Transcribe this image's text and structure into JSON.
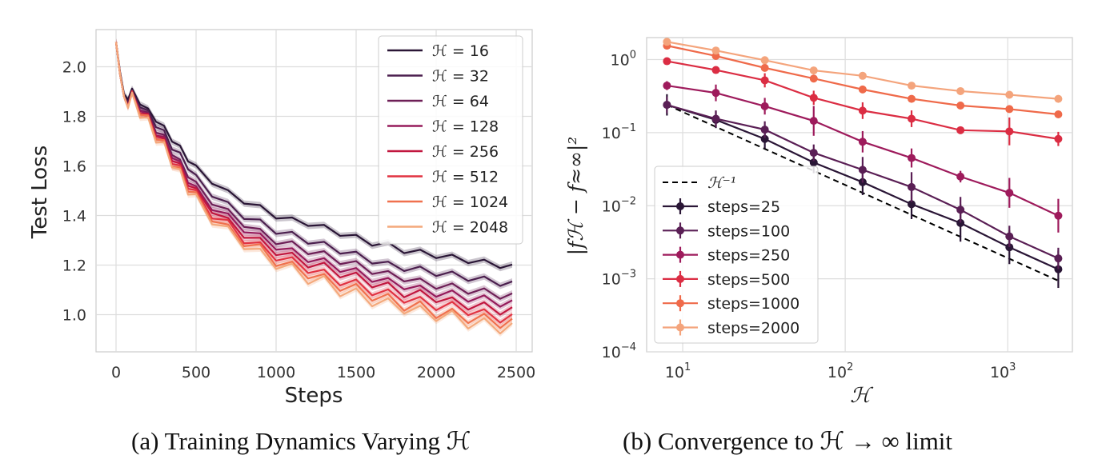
{
  "chart_data": [
    {
      "type": "line",
      "title": "",
      "xlabel": "Steps",
      "ylabel": "Test Loss",
      "xlim": [
        -125,
        2600
      ],
      "ylim": [
        0.85,
        2.15
      ],
      "xticks": [
        0,
        500,
        1000,
        1500,
        2000,
        2500
      ],
      "xtick_labels": [
        "0",
        "500",
        "1000",
        "1500",
        "2000",
        "2500"
      ],
      "yticks": [
        1.0,
        1.2,
        1.4,
        1.6,
        1.8,
        2.0
      ],
      "ytick_labels": [
        "1.0",
        "1.2",
        "1.4",
        "1.6",
        "1.8",
        "2.0"
      ],
      "grid": true,
      "legend_position": "top-right",
      "caption": "(a) Training Dynamics Varying ℋ",
      "x": [
        0,
        25,
        50,
        75,
        100,
        150,
        200,
        250,
        300,
        350,
        400,
        450,
        500,
        600,
        700,
        800,
        900,
        1000,
        1100,
        1200,
        1300,
        1400,
        1500,
        1600,
        1700,
        1800,
        1900,
        2000,
        2100,
        2200,
        2300,
        2400,
        2475
      ],
      "series": [
        {
          "name": "ℋ = 16",
          "color": "#2a1636",
          "values": [
            2.1,
            1.98,
            1.89,
            1.88,
            1.9,
            1.86,
            1.82,
            1.79,
            1.75,
            1.71,
            1.67,
            1.63,
            1.59,
            1.54,
            1.49,
            1.46,
            1.43,
            1.4,
            1.38,
            1.37,
            1.35,
            1.33,
            1.31,
            1.29,
            1.28,
            1.26,
            1.25,
            1.24,
            1.23,
            1.22,
            1.21,
            1.2,
            1.19
          ]
        },
        {
          "name": "ℋ = 32",
          "color": "#4b1f4e",
          "values": [
            2.1,
            1.97,
            1.88,
            1.87,
            1.89,
            1.85,
            1.81,
            1.77,
            1.73,
            1.68,
            1.64,
            1.6,
            1.55,
            1.49,
            1.44,
            1.4,
            1.37,
            1.34,
            1.32,
            1.3,
            1.28,
            1.26,
            1.24,
            1.22,
            1.2,
            1.19,
            1.18,
            1.17,
            1.16,
            1.15,
            1.14,
            1.13,
            1.12
          ]
        },
        {
          "name": "ℋ = 64",
          "color": "#6e1f57",
          "values": [
            2.1,
            1.97,
            1.88,
            1.86,
            1.88,
            1.84,
            1.8,
            1.75,
            1.71,
            1.66,
            1.61,
            1.57,
            1.52,
            1.46,
            1.41,
            1.37,
            1.33,
            1.3,
            1.28,
            1.26,
            1.24,
            1.22,
            1.2,
            1.18,
            1.16,
            1.15,
            1.13,
            1.12,
            1.11,
            1.1,
            1.09,
            1.08,
            1.07
          ]
        },
        {
          "name": "ℋ = 128",
          "color": "#951b5b",
          "values": [
            2.1,
            1.97,
            1.88,
            1.86,
            1.88,
            1.84,
            1.79,
            1.74,
            1.7,
            1.65,
            1.6,
            1.55,
            1.5,
            1.44,
            1.39,
            1.35,
            1.31,
            1.28,
            1.25,
            1.23,
            1.21,
            1.19,
            1.17,
            1.15,
            1.13,
            1.12,
            1.1,
            1.09,
            1.08,
            1.07,
            1.06,
            1.05,
            1.04
          ]
        },
        {
          "name": "ℋ = 256",
          "color": "#c1173f",
          "values": [
            2.1,
            1.97,
            1.88,
            1.86,
            1.88,
            1.83,
            1.79,
            1.74,
            1.69,
            1.64,
            1.59,
            1.54,
            1.49,
            1.43,
            1.37,
            1.33,
            1.29,
            1.26,
            1.23,
            1.21,
            1.19,
            1.17,
            1.15,
            1.13,
            1.11,
            1.09,
            1.08,
            1.07,
            1.05,
            1.04,
            1.03,
            1.02,
            1.01
          ]
        },
        {
          "name": "ℋ = 512",
          "color": "#e13342",
          "values": [
            2.1,
            1.97,
            1.88,
            1.86,
            1.88,
            1.83,
            1.78,
            1.73,
            1.68,
            1.63,
            1.58,
            1.53,
            1.48,
            1.41,
            1.36,
            1.31,
            1.27,
            1.24,
            1.21,
            1.19,
            1.16,
            1.14,
            1.12,
            1.1,
            1.08,
            1.07,
            1.05,
            1.04,
            1.03,
            1.02,
            1.0,
            0.99,
            0.98
          ]
        },
        {
          "name": "ℋ = 1024",
          "color": "#f0714e",
          "values": [
            2.1,
            1.97,
            1.88,
            1.86,
            1.87,
            1.83,
            1.78,
            1.73,
            1.68,
            1.62,
            1.57,
            1.52,
            1.47,
            1.4,
            1.34,
            1.3,
            1.26,
            1.22,
            1.19,
            1.17,
            1.14,
            1.12,
            1.1,
            1.08,
            1.06,
            1.04,
            1.03,
            1.01,
            1.0,
            0.99,
            0.98,
            0.97,
            0.96
          ]
        },
        {
          "name": "ℋ = 2048",
          "color": "#f4a97c",
          "values": [
            2.1,
            1.97,
            1.88,
            1.86,
            1.87,
            1.82,
            1.77,
            1.72,
            1.67,
            1.62,
            1.56,
            1.51,
            1.46,
            1.39,
            1.33,
            1.29,
            1.24,
            1.21,
            1.18,
            1.15,
            1.13,
            1.1,
            1.08,
            1.06,
            1.04,
            1.03,
            1.01,
            1.0,
            0.99,
            0.97,
            0.96,
            0.95,
            0.94
          ]
        }
      ]
    },
    {
      "type": "line",
      "title": "",
      "xlabel": "ℋ",
      "ylabel": "|fℋ − f≈∞|²",
      "xscale": "log",
      "yscale": "log",
      "xlim": [
        6,
        2500
      ],
      "ylim": [
        0.0001,
        2
      ],
      "xticks": [
        10,
        100,
        1000
      ],
      "xtick_bases": [
        "10",
        "10",
        "10"
      ],
      "xtick_exps": [
        "1",
        "2",
        "3"
      ],
      "yticks": [
        0.0001,
        0.001,
        0.01,
        0.1,
        1
      ],
      "ytick_bases": [
        "10",
        "10",
        "10",
        "10",
        "10"
      ],
      "ytick_exps": [
        "−4",
        "−3",
        "−2",
        "−1",
        "0"
      ],
      "grid": true,
      "legend_position": "lower-left",
      "caption": "(b) Convergence to ℋ → ∞ limit",
      "x": [
        8,
        16,
        32,
        64,
        128,
        256,
        512,
        1024,
        2048
      ],
      "reference_line": {
        "name": "ℋ⁻¹",
        "style": "dashed",
        "color": "#000000",
        "x": [
          8,
          2048
        ],
        "values": [
          0.24,
          0.00094
        ]
      },
      "series": [
        {
          "name": "steps=25",
          "color": "#2a1636",
          "values": [
            0.24,
            0.15,
            0.082,
            0.039,
            0.021,
            0.0105,
            0.0058,
            0.0027,
            0.00135
          ],
          "error_factor": [
            1.4,
            1.3,
            1.35,
            1.4,
            1.5,
            1.6,
            1.8,
            1.7,
            1.8
          ]
        },
        {
          "name": "steps=100",
          "color": "#5a1f55",
          "values": [
            0.24,
            0.155,
            0.11,
            0.053,
            0.031,
            0.018,
            0.0088,
            0.0038,
            0.0019
          ],
          "error_factor": [
            1.3,
            1.3,
            1.3,
            1.3,
            1.5,
            1.6,
            1.5,
            1.4,
            1.4
          ]
        },
        {
          "name": "steps=250",
          "color": "#9e1b5c",
          "values": [
            0.44,
            0.35,
            0.23,
            0.145,
            0.075,
            0.045,
            0.025,
            0.015,
            0.0073
          ],
          "error_factor": [
            1.15,
            1.3,
            1.3,
            1.6,
            1.4,
            1.35,
            1.2,
            1.6,
            1.7
          ]
        },
        {
          "name": "steps=500",
          "color": "#db2d43",
          "values": [
            0.95,
            0.72,
            0.52,
            0.3,
            0.2,
            0.155,
            0.108,
            0.104,
            0.082
          ],
          "error_factor": [
            1.1,
            1.1,
            1.25,
            1.25,
            1.3,
            1.3,
            1.1,
            1.55,
            1.25
          ]
        },
        {
          "name": "steps=1000",
          "color": "#ef6a4a",
          "values": [
            1.55,
            1.12,
            0.77,
            0.55,
            0.39,
            0.29,
            0.235,
            0.21,
            0.178
          ],
          "error_factor": [
            1.08,
            1.08,
            1.08,
            1.1,
            1.1,
            1.1,
            1.1,
            1.1,
            1.1
          ]
        },
        {
          "name": "steps=2000",
          "color": "#f4a47c",
          "values": [
            1.75,
            1.33,
            0.98,
            0.71,
            0.6,
            0.44,
            0.37,
            0.33,
            0.29
          ],
          "error_factor": [
            1.08,
            1.08,
            1.08,
            1.08,
            1.08,
            1.08,
            1.08,
            1.08,
            1.08
          ]
        }
      ]
    }
  ]
}
